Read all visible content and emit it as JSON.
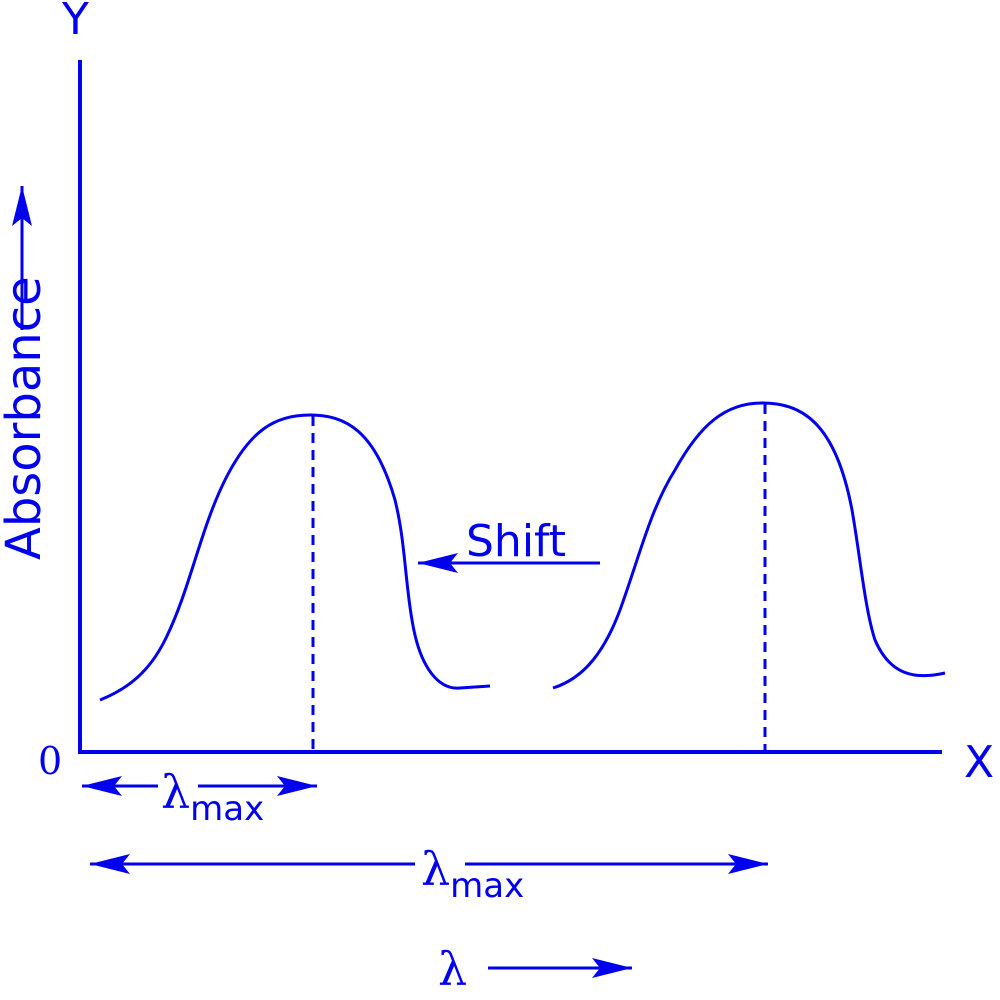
{
  "diagram": {
    "y_axis_label": "Y",
    "x_axis_label": "X",
    "origin_label": "0",
    "ordinate_label": "Absorbance",
    "shift_label": "Shift",
    "lambda_symbol": "λ",
    "lambda_max_subscript": "max",
    "abscissa_label": "λ"
  },
  "colors": {
    "ink": "#0000ee"
  }
}
